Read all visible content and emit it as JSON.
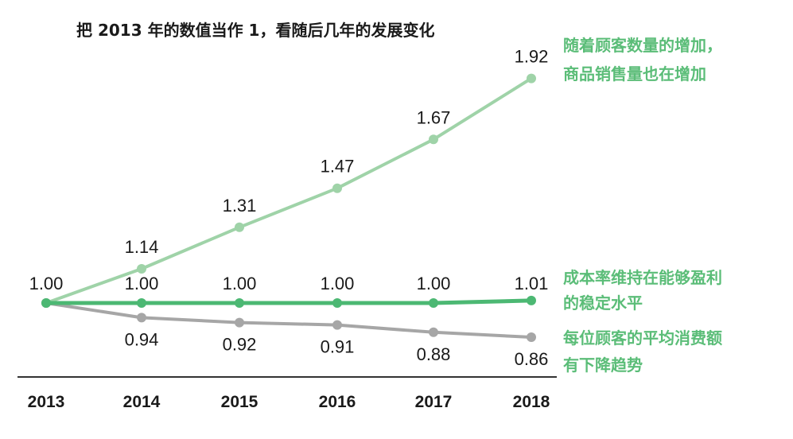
{
  "chart_data": {
    "type": "line",
    "title": "把 2013 年的数值当作 1，看随后几年的发展变化",
    "categories": [
      "2013",
      "2014",
      "2015",
      "2016",
      "2017",
      "2018"
    ],
    "series": [
      {
        "values": [
          1.0,
          1.14,
          1.31,
          1.47,
          1.67,
          1.92
        ],
        "color": "#9fd3a8",
        "value_labels": [
          "1.00",
          "1.14",
          "1.31",
          "1.47",
          "1.67",
          "1.92"
        ],
        "annotation": [
          "随着顾客数量的增加，",
          "商品销售量也在增加"
        ]
      },
      {
        "values": [
          1.0,
          1.0,
          1.0,
          1.0,
          1.0,
          1.01
        ],
        "color": "#4cb873",
        "value_labels": [
          "",
          "1.00",
          "1.00",
          "1.00",
          "1.00",
          "1.01"
        ],
        "annotation": [
          "成本率维持在能够盈利",
          "的稳定水平"
        ]
      },
      {
        "values": [
          1.0,
          0.94,
          0.92,
          0.91,
          0.88,
          0.86
        ],
        "color": "#a6a6a6",
        "value_labels": [
          "",
          "0.94",
          "0.92",
          "0.91",
          "0.88",
          "0.86"
        ],
        "annotation": [
          "每位顾客的平均消费额",
          "有下降趋势"
        ]
      }
    ],
    "annotation_color": "#5bbd78",
    "axis_color": "#333333",
    "ylim": [
      0.8,
      2.0
    ],
    "grid": false,
    "legend": "none"
  }
}
